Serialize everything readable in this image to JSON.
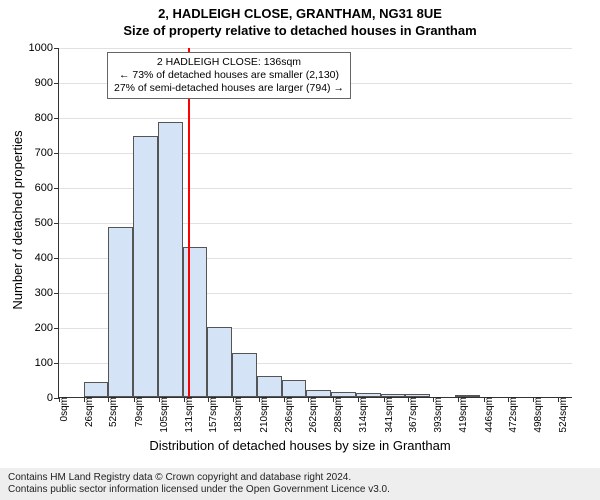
{
  "title": "2, HADLEIGH CLOSE, GRANTHAM, NG31 8UE",
  "subtitle": "Size of property relative to detached houses in Grantham",
  "ylabel": "Number of detached properties",
  "xlabel": "Distribution of detached houses by size in Grantham",
  "chart": {
    "type": "histogram",
    "background_color": "#ffffff",
    "bar_fill": "#d5e3f6",
    "bar_border": "#555555",
    "grid_color": "#333333",
    "vline_color": "#ff0000",
    "vline_x": 136,
    "ylim": [
      0,
      1000
    ],
    "yticks": [
      0,
      100,
      200,
      300,
      400,
      500,
      600,
      700,
      800,
      900,
      1000
    ],
    "xlim": [
      0,
      540
    ],
    "xticks": [
      0,
      26,
      52,
      79,
      105,
      131,
      157,
      183,
      210,
      236,
      262,
      288,
      314,
      341,
      367,
      393,
      419,
      446,
      472,
      498,
      524
    ],
    "xtick_labels": [
      "0sqm",
      "26sqm",
      "52sqm",
      "79sqm",
      "105sqm",
      "131sqm",
      "157sqm",
      "183sqm",
      "210sqm",
      "236sqm",
      "262sqm",
      "288sqm",
      "314sqm",
      "341sqm",
      "367sqm",
      "393sqm",
      "419sqm",
      "446sqm",
      "472sqm",
      "498sqm",
      "524sqm"
    ],
    "xtick_fontsize": 10,
    "ytick_fontsize": 11,
    "label_fontsize": 13,
    "bar_bin_width": 26,
    "values": [
      0,
      42,
      485,
      745,
      785,
      430,
      200,
      125,
      60,
      50,
      20,
      15,
      12,
      10,
      8,
      0,
      5,
      0,
      0,
      0
    ]
  },
  "annotation": {
    "line1": "2 HADLEIGH CLOSE: 136sqm",
    "line2": "← 73% of detached houses are smaller (2,130)",
    "line3": "27% of semi-detached houses are larger (794) →",
    "border_color": "#666666",
    "background": "#ffffff",
    "fontsize": 10.5
  },
  "footer": {
    "line1": "Contains HM Land Registry data © Crown copyright and database right 2024.",
    "line2": "Contains public sector information licensed under the Open Government Licence v3.0.",
    "background": "#eeeeee"
  }
}
